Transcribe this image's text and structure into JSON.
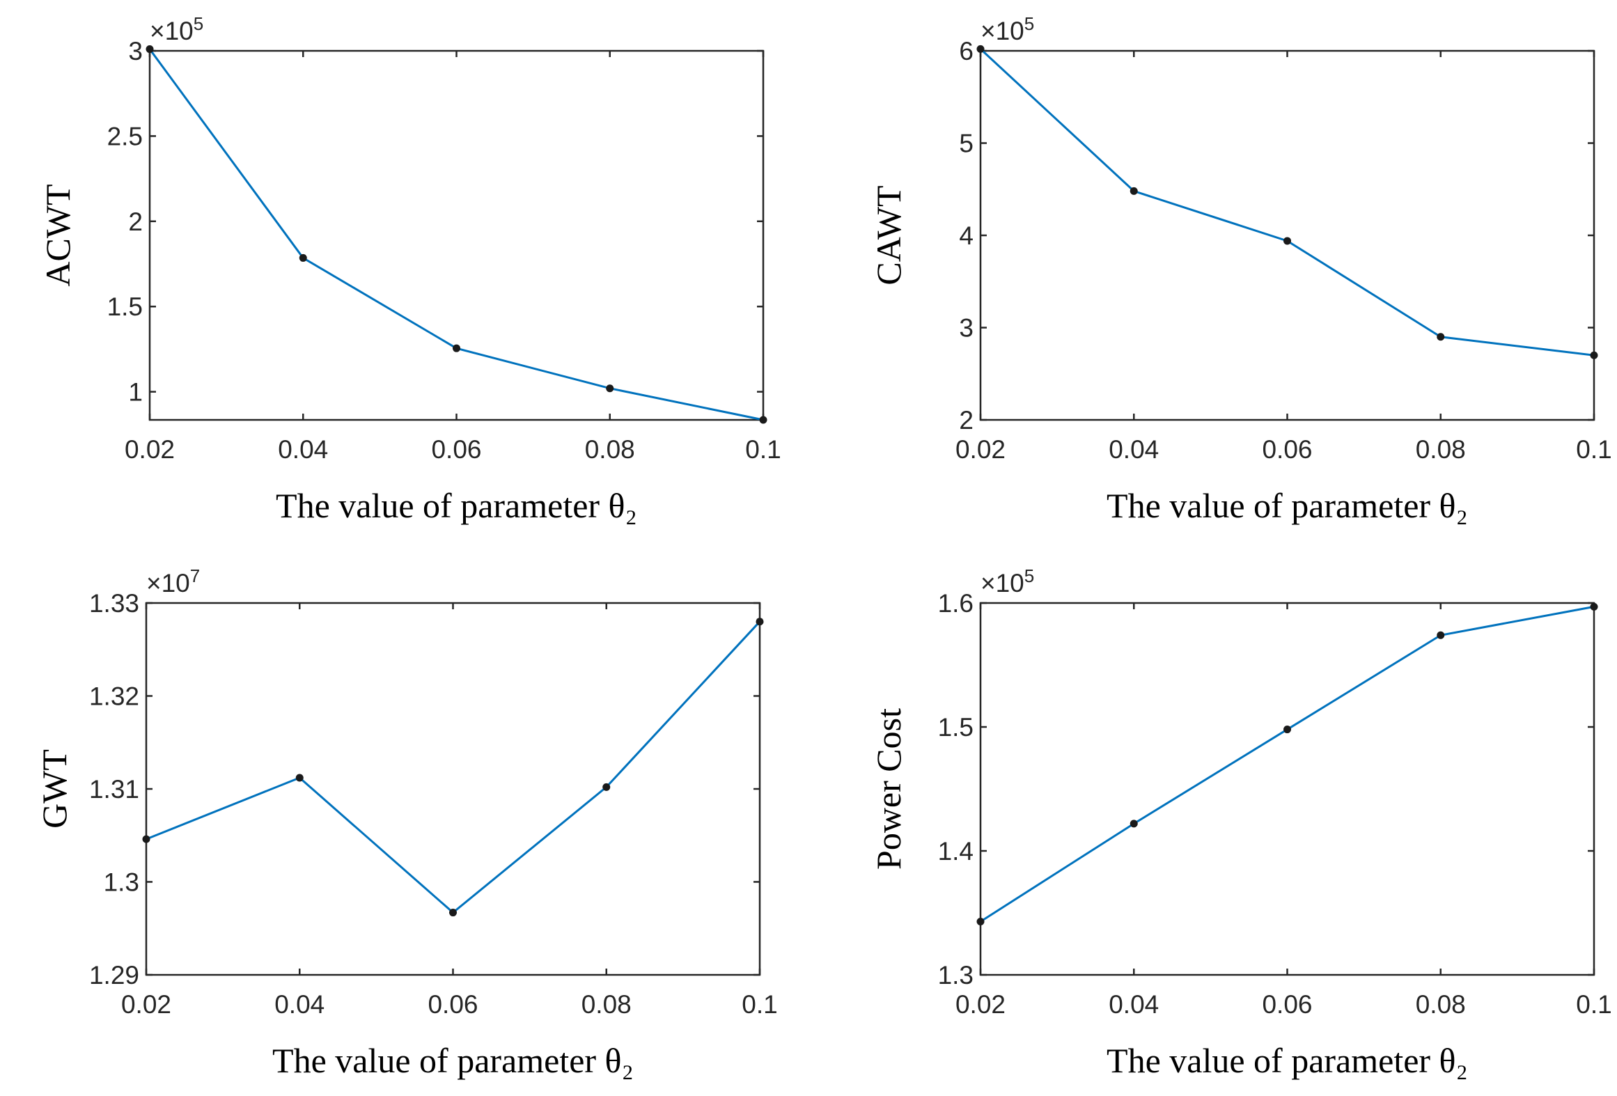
{
  "chart_data": [
    {
      "type": "line",
      "title": "",
      "xlabel": "The value of parameter θ₂",
      "ylabel": "ACWT",
      "x": [
        0.02,
        0.04,
        0.06,
        0.08,
        0.1
      ],
      "series": [
        {
          "name": "ACWT",
          "values": [
            301000,
            178500,
            125500,
            102000,
            83500
          ]
        }
      ],
      "xlim": [
        0.02,
        0.1
      ],
      "ylim": [
        0.835,
        3.0
      ],
      "y_scale_note": "×10",
      "y_exponent": "5",
      "xticks": [
        "0.02",
        "0.04",
        "0.06",
        "0.08",
        "0.1"
      ],
      "yticks": [
        {
          "v": 1,
          "label": "1"
        },
        {
          "v": 1.5,
          "label": "1.5"
        },
        {
          "v": 2,
          "label": "2"
        },
        {
          "v": 2.5,
          "label": "2.5"
        },
        {
          "v": 3,
          "label": "3"
        }
      ],
      "line_color": "#0072BD",
      "marker_color": "#1a1a1a"
    },
    {
      "type": "line",
      "title": "",
      "xlabel": "The value of parameter θ₂",
      "ylabel": "CAWT",
      "x": [
        0.02,
        0.04,
        0.06,
        0.08,
        0.1
      ],
      "series": [
        {
          "name": "CAWT",
          "values": [
            602000,
            448000,
            394000,
            290000,
            270000
          ]
        }
      ],
      "xlim": [
        0.02,
        0.1
      ],
      "ylim": [
        2,
        6
      ],
      "y_scale_note": "×10",
      "y_exponent": "5",
      "xticks": [
        "0.02",
        "0.04",
        "0.06",
        "0.08",
        "0.1"
      ],
      "yticks": [
        {
          "v": 2,
          "label": "2"
        },
        {
          "v": 3,
          "label": "3"
        },
        {
          "v": 4,
          "label": "4"
        },
        {
          "v": 5,
          "label": "5"
        },
        {
          "v": 6,
          "label": "6"
        }
      ],
      "line_color": "#0072BD",
      "marker_color": "#1a1a1a"
    },
    {
      "type": "line",
      "title": "",
      "xlabel": "The value of parameter θ₂",
      "ylabel": "GWT",
      "x": [
        0.02,
        0.04,
        0.06,
        0.08,
        0.1
      ],
      "series": [
        {
          "name": "GWT",
          "values": [
            13046000,
            13112000,
            12967000,
            13102000,
            13280000
          ]
        }
      ],
      "xlim": [
        0.02,
        0.1
      ],
      "ylim": [
        1.29,
        1.33
      ],
      "y_scale_note": "×10",
      "y_exponent": "7",
      "xticks": [
        "0.02",
        "0.04",
        "0.06",
        "0.08",
        "0.1"
      ],
      "yticks": [
        {
          "v": 1.29,
          "label": "1.29"
        },
        {
          "v": 1.3,
          "label": "1.3"
        },
        {
          "v": 1.31,
          "label": "1.31"
        },
        {
          "v": 1.32,
          "label": "1.32"
        },
        {
          "v": 1.33,
          "label": "1.33"
        }
      ],
      "line_color": "#0072BD",
      "marker_color": "#1a1a1a"
    },
    {
      "type": "line",
      "title": "",
      "xlabel": "The value of parameter θ₂",
      "ylabel": "Power Cost",
      "x": [
        0.02,
        0.04,
        0.06,
        0.08,
        0.1
      ],
      "series": [
        {
          "name": "Power Cost",
          "values": [
            134300,
            142200,
            149800,
            157400,
            159700
          ]
        }
      ],
      "xlim": [
        0.02,
        0.1
      ],
      "ylim": [
        1.3,
        1.6
      ],
      "y_scale_note": "×10",
      "y_exponent": "5",
      "xticks": [
        "0.02",
        "0.04",
        "0.06",
        "0.08",
        "0.1"
      ],
      "yticks": [
        {
          "v": 1.3,
          "label": "1.3"
        },
        {
          "v": 1.4,
          "label": "1.4"
        },
        {
          "v": 1.5,
          "label": "1.5"
        },
        {
          "v": 1.6,
          "label": "1.6"
        }
      ],
      "line_color": "#0072BD",
      "marker_color": "#1a1a1a"
    }
  ]
}
